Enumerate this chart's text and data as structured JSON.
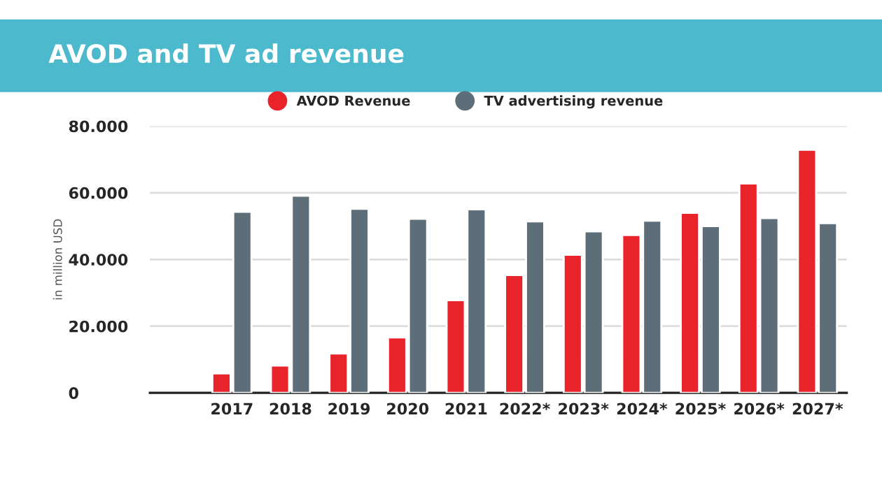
{
  "chart_data": {
    "type": "bar",
    "title": "AVOD and TV ad revenue",
    "ylabel": "in million USD",
    "categories": [
      "2017",
      "2018",
      "2019",
      "2020",
      "2021",
      "2022*",
      "2023*",
      "2024*",
      "2025*",
      "2026*",
      "2027*"
    ],
    "series": [
      {
        "name": "AVOD Revenue",
        "color": "#e8232a",
        "values": [
          5800,
          8200,
          11800,
          16600,
          27800,
          35300,
          41400,
          47300,
          54000,
          62800,
          72900
        ]
      },
      {
        "name": "TV advertising revenue",
        "color": "#5e6e79",
        "values": [
          54300,
          59100,
          55200,
          52200,
          55000,
          51400,
          48400,
          51600,
          50000,
          52400,
          50900
        ]
      }
    ],
    "ylim": [
      0,
      80000
    ],
    "yticks": [
      {
        "value": 0,
        "label": "0"
      },
      {
        "value": 20000,
        "label": "20.000"
      },
      {
        "value": 40000,
        "label": "40.000"
      },
      {
        "value": 60000,
        "label": "60.000"
      },
      {
        "value": 80000,
        "label": "80.000"
      }
    ],
    "grid": "y",
    "legend": "top"
  }
}
